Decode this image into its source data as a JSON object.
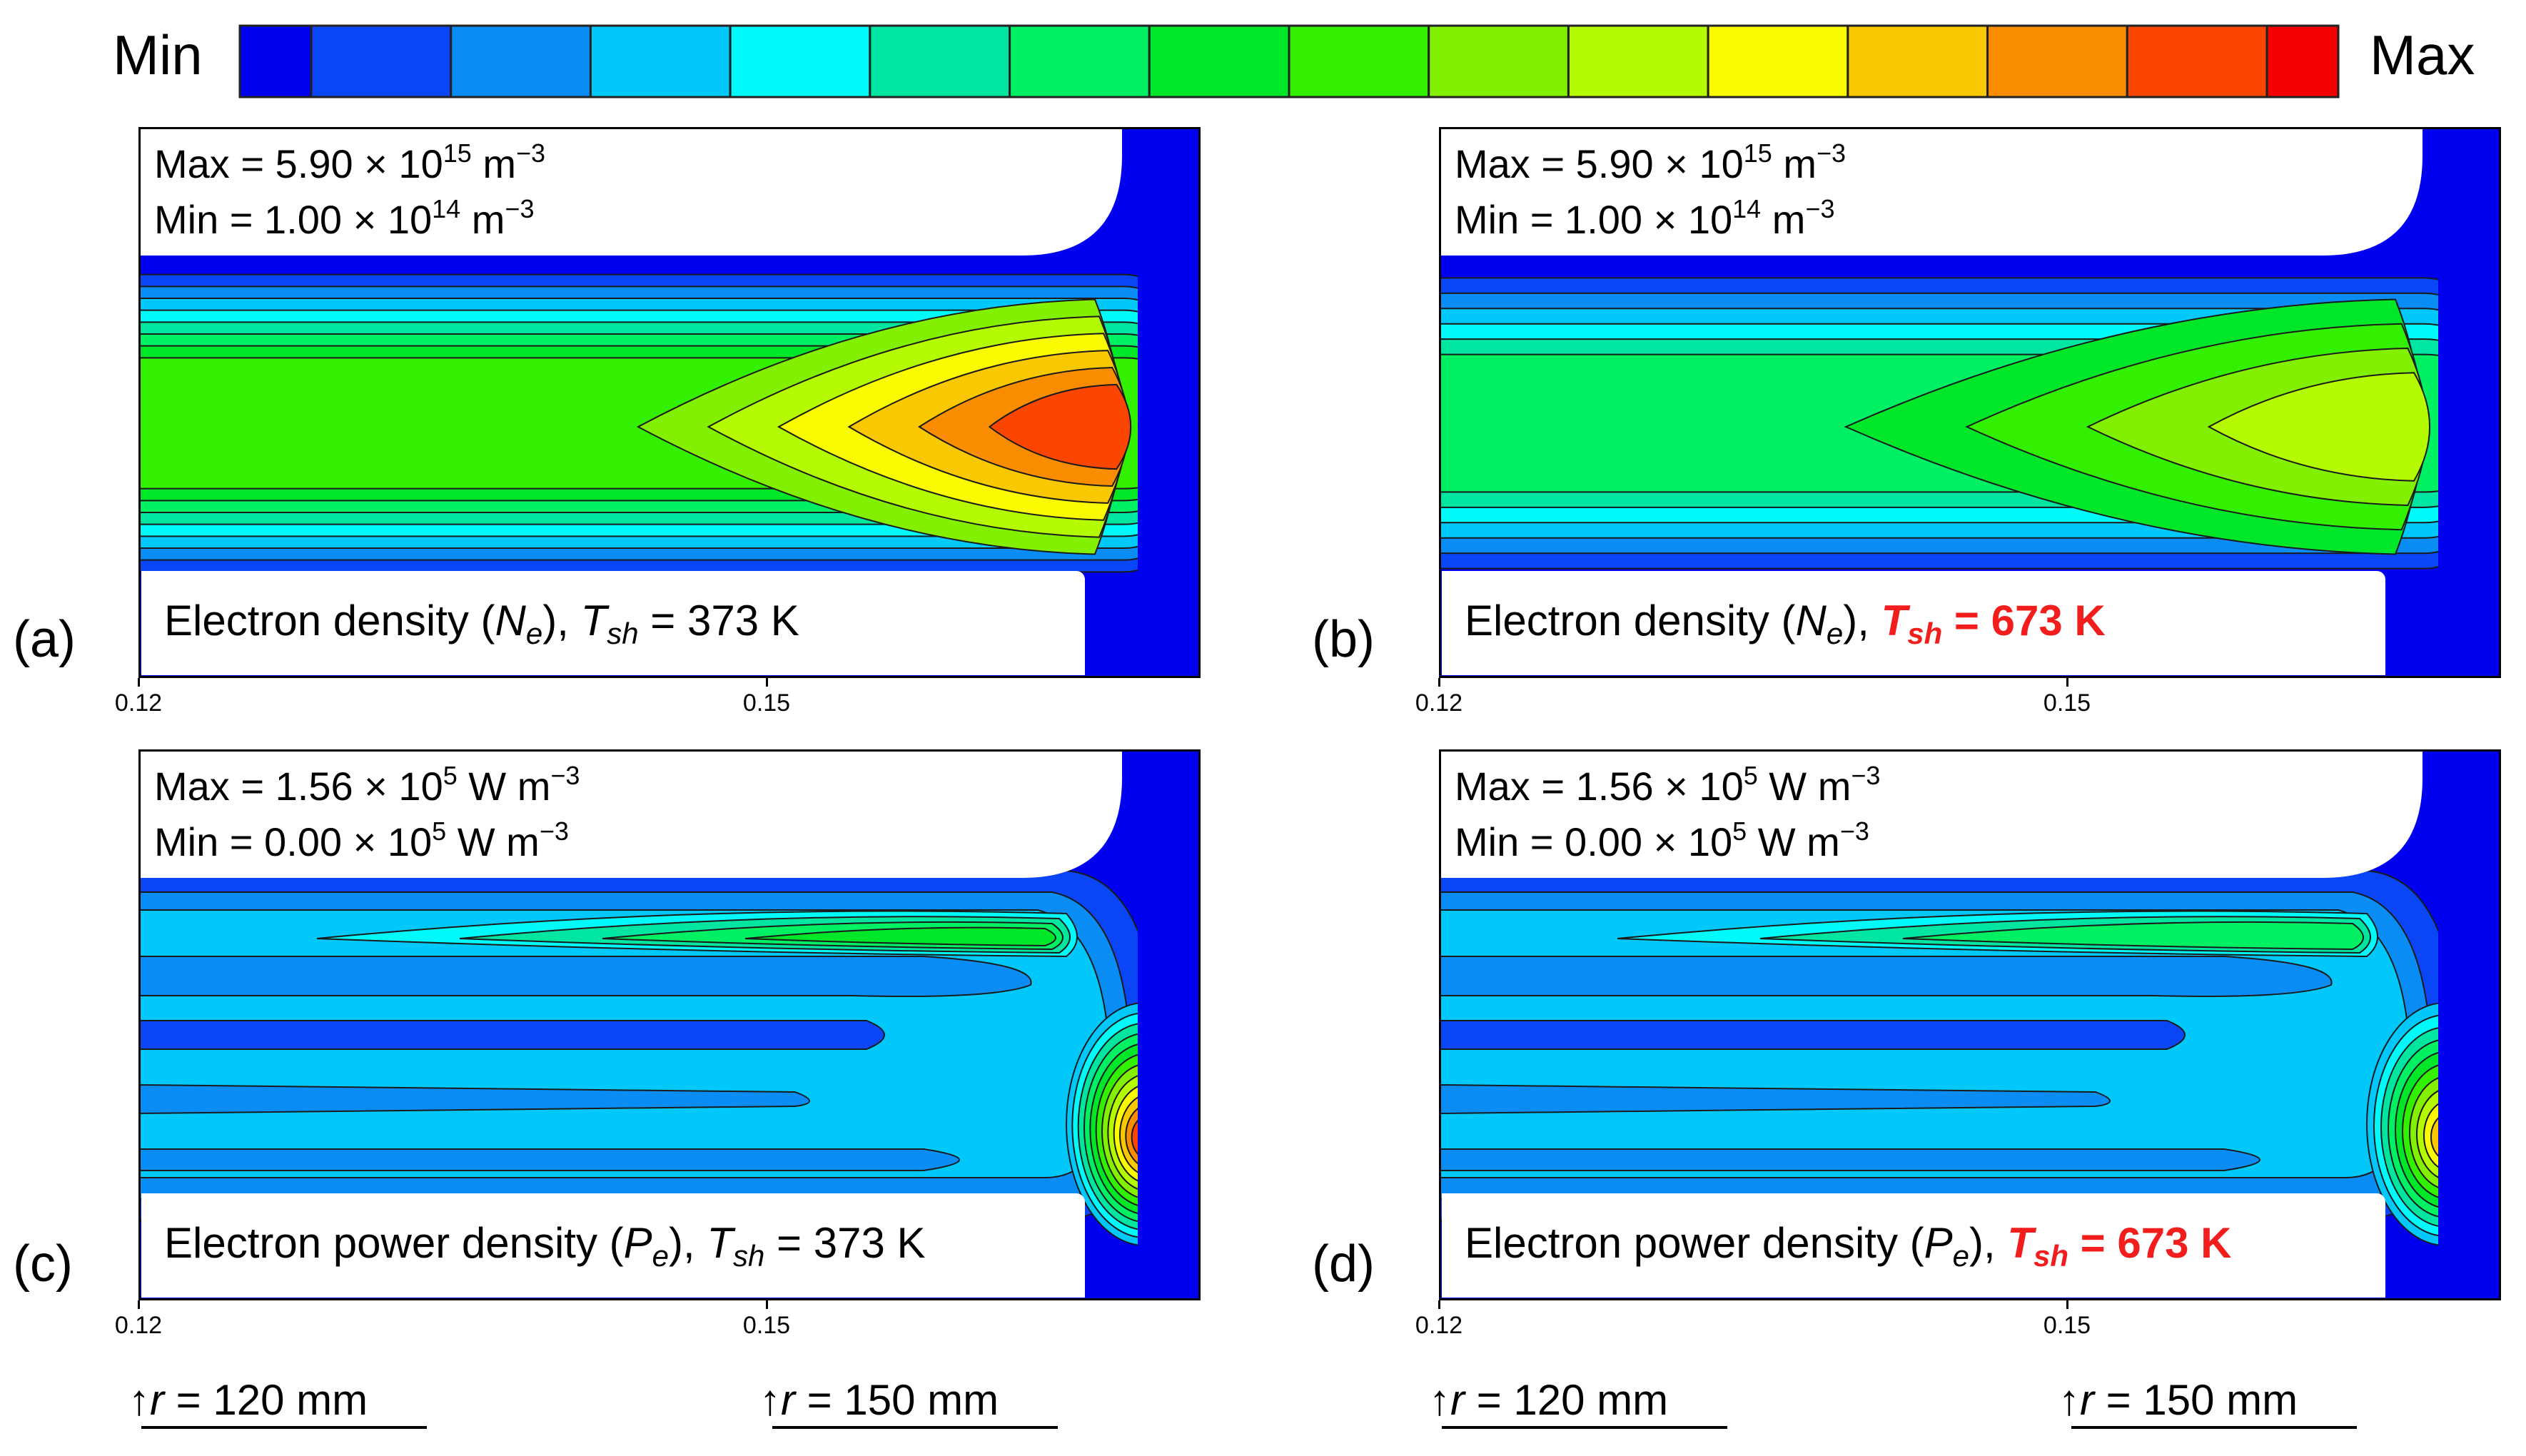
{
  "colorbar": {
    "min_label": "Min",
    "max_label": "Max",
    "colors": [
      "#0000f0",
      "#0a46f5",
      "#0a8cf5",
      "#00c8fa",
      "#00fafa",
      "#00e6a0",
      "#00f064",
      "#00e628",
      "#32f000",
      "#82f000",
      "#b4fa00",
      "#fafa00",
      "#fac800",
      "#fa8c00",
      "#fa4600",
      "#f50000"
    ]
  },
  "axis": {
    "tick_labels": [
      "0.12",
      "0.15"
    ]
  },
  "r_markers": {
    "arrow": "↑",
    "var": "r",
    "eq": " = ",
    "unit": " mm",
    "values": [
      "120",
      "150"
    ]
  },
  "panels": [
    {
      "letter": "(a)",
      "max_prefix": "Max = 5.90 × 10",
      "max_exp": "15",
      "max_unit": " m",
      "max_unit_exp": "−3",
      "min_prefix": "Min = 1.00 × 10",
      "min_exp": "14",
      "min_unit": " m",
      "min_unit_exp": "−3",
      "label_text": "Electron density (",
      "label_var": "N",
      "label_var_sub": "e",
      "label_sep": "), ",
      "label_T": "T",
      "label_T_sub": "sh",
      "label_value": " = 373 K",
      "highlight": false
    },
    {
      "letter": "(b)",
      "max_prefix": "Max = 5.90 × 10",
      "max_exp": "15",
      "max_unit": " m",
      "max_unit_exp": "−3",
      "min_prefix": "Min = 1.00 × 10",
      "min_exp": "14",
      "min_unit": " m",
      "min_unit_exp": "−3",
      "label_text": "Electron density (",
      "label_var": "N",
      "label_var_sub": "e",
      "label_sep": "), ",
      "label_T": "T",
      "label_T_sub": "sh",
      "label_value": " = 673 K",
      "highlight": true
    },
    {
      "letter": "(c)",
      "max_prefix": "Max = 1.56 × 10",
      "max_exp": "5",
      "max_unit": " W m",
      "max_unit_exp": "−3",
      "min_prefix": "Min = 0.00 × 10",
      "min_exp": "5",
      "min_unit": " W m",
      "min_unit_exp": "−3",
      "label_text": "Electron power density (",
      "label_var": "P",
      "label_var_sub": "e",
      "label_sep": "), ",
      "label_T": "T",
      "label_T_sub": "sh",
      "label_value": " = 373 K",
      "highlight": false
    },
    {
      "letter": "(d)",
      "max_prefix": "Max = 1.56 × 10",
      "max_exp": "5",
      "max_unit": " W m",
      "max_unit_exp": "−3",
      "min_prefix": "Min = 0.00 × 10",
      "min_exp": "5",
      "min_unit": " W m",
      "min_unit_exp": "−3",
      "label_text": "Electron power density (",
      "label_var": "P",
      "label_var_sub": "e",
      "label_sep": "), ",
      "label_T": "T",
      "label_T_sub": "sh",
      "label_value": " = 673 K",
      "highlight": true
    }
  ],
  "chart_data": {
    "type": "heatmap",
    "title": "",
    "colorscale": {
      "levels": 16,
      "min_label": "Min",
      "max_label": "Max"
    },
    "x_axis": {
      "ticks": [
        0.12,
        0.15
      ],
      "tick_labels": [
        "0.12",
        "0.15"
      ]
    },
    "markers": [
      "r = 120 mm",
      "r = 150 mm"
    ],
    "panels": [
      {
        "id": "a",
        "quantity": "Electron density (Ne)",
        "T_sh": "373 K",
        "max": "5.90 × 10^15 m^-3",
        "min": "1.00 × 10^14 m^-3",
        "peak_level_index": 14
      },
      {
        "id": "b",
        "quantity": "Electron density (Ne)",
        "T_sh": "673 K",
        "max": "5.90 × 10^15 m^-3",
        "min": "1.00 × 10^14 m^-3",
        "peak_level_index": 10
      },
      {
        "id": "c",
        "quantity": "Electron power density (Pe)",
        "T_sh": "373 K",
        "max": "1.56 × 10^5 W m^-3",
        "min": "0.00 × 10^5 W m^-3",
        "peak_level_index": 14
      },
      {
        "id": "d",
        "quantity": "Electron power density (Pe)",
        "T_sh": "673 K",
        "max": "1.56 × 10^5 W m^-3",
        "min": "0.00 × 10^5 W m^-3",
        "peak_level_index": 12
      }
    ]
  }
}
